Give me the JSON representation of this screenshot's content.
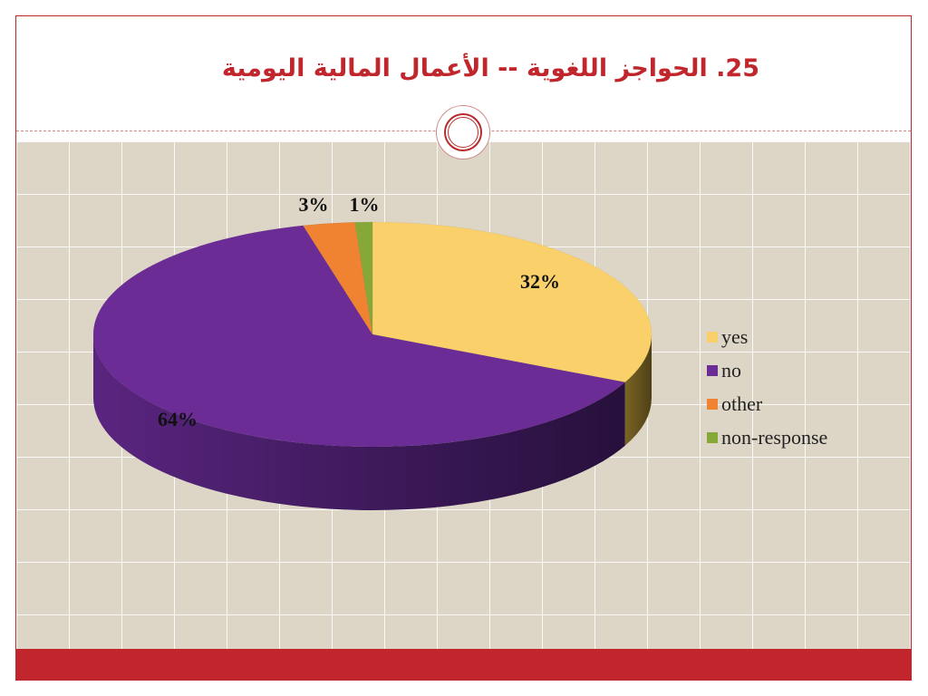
{
  "slide": {
    "title": "25. الحواجز اللغوية -- الأعمال المالية اليومية"
  },
  "chart_data": {
    "type": "pie",
    "categories": [
      "yes",
      "no",
      "other",
      "non-response"
    ],
    "values": [
      32,
      64,
      3,
      1
    ],
    "value_labels": [
      "32%",
      "64%",
      "3%",
      "1%"
    ],
    "colors": [
      "#f9d06a",
      "#6b2c96",
      "#ef8331",
      "#86a838"
    ],
    "legend_position": "right",
    "three_d": true
  }
}
